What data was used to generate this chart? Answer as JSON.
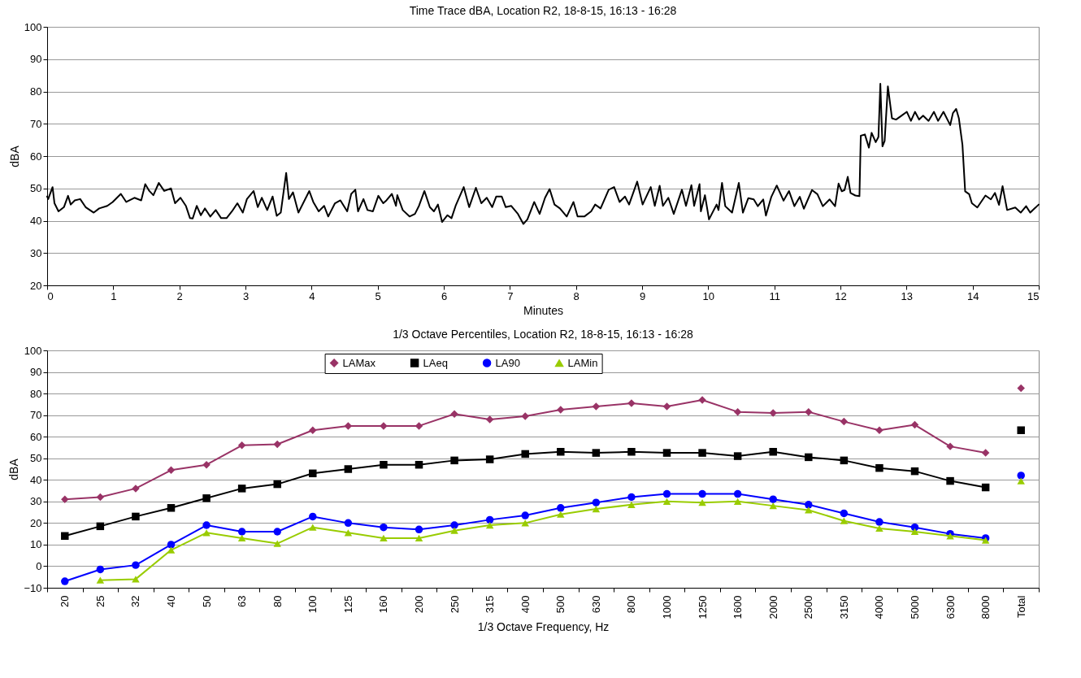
{
  "chart_data": [
    {
      "type": "line",
      "title": "Time Trace dBA, Location R2, 18-8-15,  16:13 - 16:28",
      "xlabel": "Minutes",
      "ylabel": "dBA",
      "xlim": [
        0,
        15
      ],
      "xticks": [
        0,
        1,
        2,
        3,
        4,
        5,
        6,
        7,
        8,
        9,
        10,
        11,
        12,
        13,
        14,
        15
      ],
      "ylim": [
        20,
        100
      ],
      "yticks": [
        20,
        30,
        40,
        50,
        60,
        70,
        80,
        90,
        100
      ],
      "grid": "y",
      "marker": "none",
      "line_style": "solid",
      "series": [
        {
          "color": "#000000",
          "x": [
            0,
            0.016,
            0.082,
            0.111,
            0.172,
            0.254,
            0.316,
            0.357,
            0.418,
            0.5,
            0.582,
            0.705,
            0.787,
            0.91,
            0.992,
            1.115,
            1.197,
            1.32,
            1.423,
            1.484,
            1.546,
            1.607,
            1.689,
            1.771,
            1.874,
            1.935,
            2.017,
            2.099,
            2.161,
            2.202,
            2.263,
            2.325,
            2.386,
            2.468,
            2.55,
            2.632,
            2.714,
            2.796,
            2.878,
            2.96,
            3.022,
            3.124,
            3.186,
            3.247,
            3.329,
            3.411,
            3.473,
            3.534,
            3.616,
            3.657,
            3.719,
            3.801,
            3.965,
            4.026,
            4.108,
            4.19,
            4.252,
            4.354,
            4.436,
            4.539,
            4.6,
            4.662,
            4.703,
            4.785,
            4.846,
            4.928,
            5.01,
            5.084,
            5.133,
            5.215,
            5.277,
            5.297,
            5.379,
            5.482,
            5.564,
            5.625,
            5.707,
            5.789,
            5.851,
            5.912,
            5.974,
            6.056,
            6.117,
            6.179,
            6.302,
            6.384,
            6.486,
            6.568,
            6.65,
            6.732,
            6.794,
            6.876,
            6.937,
            7.019,
            7.122,
            7.204,
            7.265,
            7.368,
            7.45,
            7.532,
            7.601,
            7.675,
            7.757,
            7.86,
            7.962,
            8.024,
            8.126,
            8.229,
            8.29,
            8.372,
            8.495,
            8.577,
            8.659,
            8.741,
            8.803,
            8.926,
            9.008,
            9.131,
            9.192,
            9.266,
            9.315,
            9.397,
            9.479,
            9.602,
            9.664,
            9.746,
            9.787,
            9.869,
            9.889,
            9.951,
            10.012,
            10.127,
            10.156,
            10.209,
            10.258,
            10.361,
            10.463,
            10.525,
            10.607,
            10.689,
            10.75,
            10.832,
            10.873,
            10.955,
            11.037,
            11.14,
            11.222,
            11.304,
            11.386,
            11.447,
            11.57,
            11.652,
            11.734,
            11.837,
            11.919,
            11.972,
            12.021,
            12.062,
            12.111,
            12.153,
            12.226,
            12.288,
            12.308,
            12.37,
            12.431,
            12.472,
            12.534,
            12.575,
            12.604,
            12.636,
            12.669,
            12.718,
            12.78,
            12.841,
            12.923,
            13.005,
            13.067,
            13.128,
            13.19,
            13.251,
            13.333,
            13.415,
            13.477,
            13.559,
            13.661,
            13.702,
            13.751,
            13.792,
            13.846,
            13.887,
            13.948,
            13.989,
            14.071,
            14.194,
            14.276,
            14.338,
            14.399,
            14.453,
            14.522,
            14.645,
            14.727,
            14.809,
            14.871,
            14.932,
            15
          ],
          "values": [
            47.5,
            46.7,
            50.4,
            45.4,
            42.9,
            44.2,
            47.7,
            45,
            46.3,
            46.7,
            44.2,
            42.5,
            43.8,
            44.6,
            45.8,
            48.3,
            45.8,
            47.1,
            46.3,
            51.3,
            49.2,
            47.9,
            51.7,
            49.2,
            50,
            45.4,
            47.1,
            44.6,
            40.8,
            40.7,
            44.6,
            41.7,
            43.8,
            41.3,
            43.3,
            40.8,
            40.8,
            42.9,
            45.4,
            42.5,
            46.7,
            49.2,
            44.2,
            47.1,
            43.3,
            47.5,
            41.5,
            42.5,
            54.8,
            46.7,
            48.8,
            42.5,
            49.2,
            45.8,
            42.9,
            44.6,
            41.3,
            45.4,
            46.3,
            42.9,
            48.3,
            49.6,
            42.9,
            46.7,
            43.3,
            42.9,
            47.7,
            45.4,
            46.3,
            48.3,
            44.6,
            47.9,
            43.3,
            41.3,
            42.1,
            44.6,
            49.2,
            44.2,
            42.9,
            45,
            39.6,
            41.7,
            40.8,
            44.6,
            50.4,
            44.2,
            50.2,
            45.4,
            47.1,
            44.2,
            47.5,
            47.5,
            44.2,
            44.6,
            42.1,
            39,
            40.4,
            45.8,
            42.1,
            47.1,
            49.8,
            45,
            43.8,
            41.3,
            45.8,
            41.3,
            41.3,
            42.9,
            45,
            43.8,
            49.6,
            50.4,
            45.8,
            47.5,
            45,
            52.1,
            45,
            50.4,
            44.6,
            50.8,
            44.6,
            47.1,
            42.1,
            49.6,
            44.6,
            51,
            44.6,
            51.3,
            42.9,
            47.9,
            40.4,
            45,
            43.3,
            51.7,
            44.5,
            42.5,
            51.7,
            42.5,
            47,
            46.6,
            44.5,
            46.6,
            41.6,
            47.4,
            50.9,
            46.2,
            49.2,
            44.5,
            47.4,
            43.7,
            49.5,
            48.2,
            44.5,
            46.6,
            44.5,
            51.5,
            49.1,
            49.5,
            53.6,
            48.6,
            47.8,
            47.6,
            66.3,
            66.7,
            62.6,
            67.2,
            64.3,
            65.9,
            82.4,
            63,
            64.7,
            81.6,
            71.7,
            71.3,
            72.5,
            73.7,
            70.9,
            73.7,
            71.3,
            72.5,
            70.9,
            73.7,
            70.9,
            73.7,
            69.6,
            73.3,
            74.6,
            71.7,
            63.5,
            49.1,
            48.2,
            45.4,
            44.1,
            47.8,
            46.6,
            48.6,
            44.9,
            50.7,
            43.3,
            44.1,
            42.5,
            44.5,
            42.5,
            43.7,
            45
          ]
        }
      ]
    },
    {
      "type": "line",
      "title": "1/3 Octave Percentiles, Location R2, 18-8-15,  16:13 - 16:28",
      "xlabel": "1/3 Octave Frequency, Hz",
      "ylabel": "dBA",
      "categories": [
        "20",
        "25",
        "32",
        "40",
        "50",
        "63",
        "80",
        "100",
        "125",
        "160",
        "200",
        "250",
        "315",
        "400",
        "500",
        "630",
        "800",
        "1000",
        "1250",
        "1600",
        "2000",
        "2500",
        "3150",
        "4000",
        "5000",
        "6300",
        "8000",
        "Total"
      ],
      "ylim": [
        -10,
        100
      ],
      "yticks": [
        -10,
        0,
        10,
        20,
        30,
        40,
        50,
        60,
        70,
        80,
        90,
        100
      ],
      "grid": "y",
      "legend": "top",
      "line_style": "solid",
      "series": [
        {
          "name": "LAMax",
          "color": "#993366",
          "marker": "diamond",
          "values": [
            31,
            32,
            36,
            44.5,
            47,
            56,
            56.5,
            63,
            65,
            65,
            65,
            70.5,
            68,
            69.5,
            72.5,
            74,
            75.5,
            74,
            77,
            71.5,
            71,
            71.5,
            67,
            63,
            65.5,
            55.5,
            52.5,
            null
          ]
        },
        {
          "name": "LAeq",
          "color": "#000000",
          "marker": "square",
          "values": [
            14,
            18.5,
            23,
            27,
            31.5,
            36,
            38,
            43,
            45,
            47,
            47,
            49,
            49.5,
            52,
            53,
            52.5,
            53,
            52.5,
            52.5,
            51,
            53,
            50.5,
            49,
            45.5,
            44,
            39.5,
            36.5,
            null
          ]
        },
        {
          "name": "LA90",
          "color": "#0000ff",
          "marker": "circle",
          "values": [
            -7,
            -1.5,
            0.5,
            10,
            19,
            16,
            16,
            23,
            20,
            18,
            17,
            19,
            21.5,
            23.5,
            27,
            29.5,
            32,
            33.5,
            33.5,
            33.5,
            31,
            28.5,
            24.5,
            20.5,
            18,
            15,
            13,
            null
          ]
        },
        {
          "name": "LAMin",
          "color": "#99cc00",
          "marker": "triangle",
          "values": [
            null,
            -6.5,
            -6,
            7.5,
            15.5,
            13,
            10.5,
            18,
            15.5,
            13,
            13,
            16.5,
            19,
            20,
            24,
            26.5,
            28.5,
            30,
            29.5,
            30,
            28,
            26,
            21,
            17.5,
            16,
            14,
            12,
            null
          ]
        },
        {
          "type": "scatter",
          "color": "#993366",
          "marker": "diamond",
          "x": [
            "Total"
          ],
          "values": [
            82.5
          ]
        },
        {
          "type": "scatter",
          "color": "#000000",
          "marker": "square",
          "x": [
            "Total"
          ],
          "values": [
            63
          ]
        },
        {
          "type": "scatter",
          "color": "#0000ff",
          "marker": "circle",
          "x": [
            "Total"
          ],
          "values": [
            42
          ]
        },
        {
          "type": "scatter",
          "color": "#99cc00",
          "marker": "triangle",
          "x": [
            "Total"
          ],
          "values": [
            39.5
          ]
        }
      ]
    }
  ]
}
